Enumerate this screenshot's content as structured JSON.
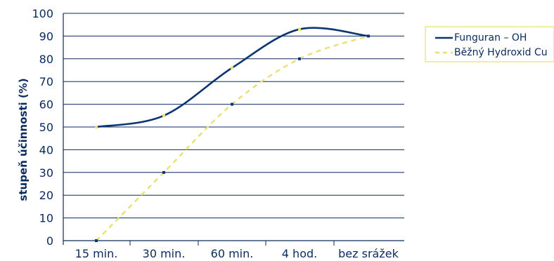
{
  "chart_data": {
    "type": "line",
    "title": "",
    "xlabel": "",
    "ylabel": "stupeň účinnosti (%)",
    "categories": [
      "15 min.",
      "30 min.",
      "60 min.",
      "4 hod.",
      "bez srážek"
    ],
    "ylim": [
      0,
      100
    ],
    "yticks": [
      0,
      10,
      20,
      30,
      40,
      50,
      60,
      70,
      80,
      90,
      100
    ],
    "grid": "horizontal",
    "legend_position": "right",
    "series": [
      {
        "name": "Funguran – OH",
        "style": "solid",
        "color": "#0b3572",
        "marker_color": "#e8e070",
        "x": [
          0,
          1,
          2,
          3,
          4
        ],
        "values": [
          50,
          55,
          76,
          93,
          90
        ]
      },
      {
        "name": "Běžný Hydroxid Cu",
        "style": "dashed",
        "color": "#e8e070",
        "marker_color": "#0b3572",
        "x": [
          0,
          1,
          2,
          3,
          4
        ],
        "values": [
          0,
          30,
          60,
          80,
          90
        ]
      }
    ],
    "colors": {
      "axis": "#0a2a5e",
      "grid": "#0a2a5e",
      "text": "#0a2a5e",
      "legend_border": "#e8e070"
    }
  }
}
